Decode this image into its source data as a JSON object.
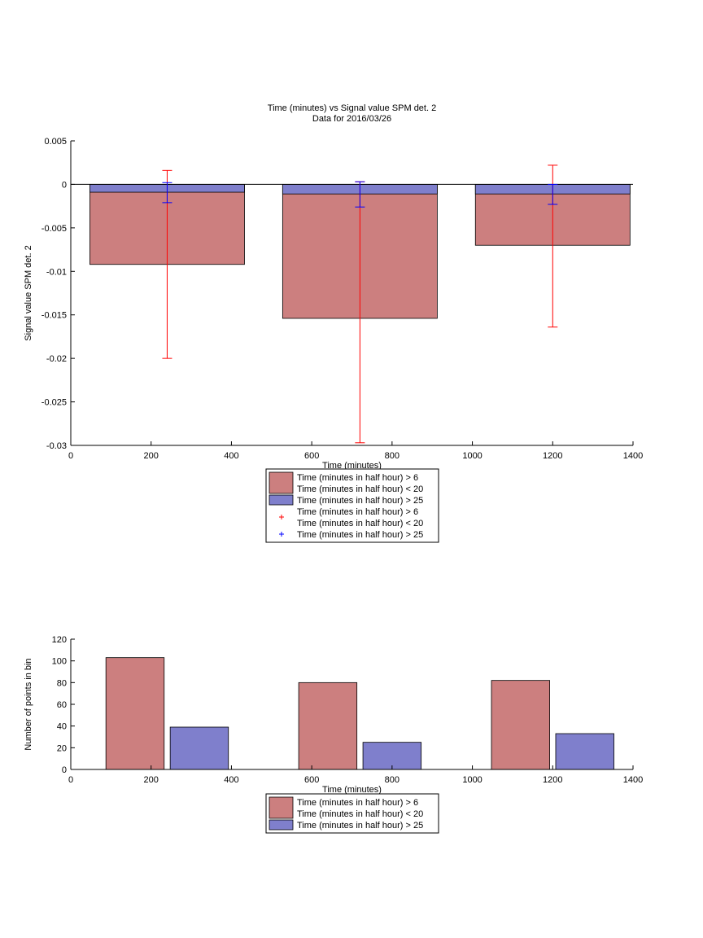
{
  "chart_data": [
    {
      "type": "bar",
      "title": "Time (minutes) vs Signal value SPM det. 2",
      "subtitle": "Data for 2016/03/26",
      "xlabel": "Time (minutes)",
      "ylabel": "Signal value SPM det. 2",
      "xlim": [
        0,
        1400
      ],
      "ylim": [
        -0.03,
        0.005
      ],
      "xticks": [
        0,
        200,
        400,
        600,
        800,
        1000,
        1200,
        1400
      ],
      "yticks": [
        0.005,
        0,
        -0.005,
        -0.01,
        -0.015,
        -0.02,
        -0.025,
        -0.03
      ],
      "ytick_labels": [
        "0.005",
        "0",
        "-0.005",
        "-0.01",
        "-0.015",
        "-0.02",
        "-0.025",
        "-0.03"
      ],
      "bar_width": 385,
      "x": [
        240,
        720,
        1200
      ],
      "series": [
        {
          "name": "Time (minutes in half hour) > 6\nTime (minutes in half hour) < 20",
          "color": "#cc7f7f",
          "values": [
            -0.0092,
            -0.0154,
            -0.007
          ]
        },
        {
          "name": "Time (minutes in half hour) > 25",
          "color": "#7f7fcc",
          "values": [
            -0.0009,
            -0.0011,
            -0.0011
          ]
        }
      ],
      "error_bars": [
        {
          "name": "Time (minutes in half hour) > 6\nTime (minutes in half hour) < 20",
          "color": "#ff0000",
          "x": [
            240,
            720,
            1200
          ],
          "low": [
            -0.02,
            -0.0297,
            -0.0164
          ],
          "high": [
            0.0016,
            0.0003,
            0.0022
          ]
        },
        {
          "name": "Time (minutes in half hour) > 25",
          "color": "#0000ff",
          "x": [
            240,
            720,
            1200
          ],
          "low": [
            -0.0021,
            -0.0026,
            -0.0023
          ],
          "high": [
            0.0002,
            0.0003,
            0.0
          ]
        }
      ],
      "legend": {
        "position": "below",
        "entries": [
          {
            "kind": "bar",
            "color": "#cc7f7f",
            "lines": [
              "Time (minutes in half hour) > 6",
              "Time (minutes in half hour) < 20"
            ]
          },
          {
            "kind": "bar",
            "color": "#7f7fcc",
            "lines": [
              "Time (minutes in half hour) > 25"
            ]
          },
          {
            "kind": "marker",
            "color": "#ff0000",
            "lines": [
              "Time (minutes in half hour) > 6",
              "Time (minutes in half hour) < 20"
            ]
          },
          {
            "kind": "marker",
            "color": "#0000ff",
            "lines": [
              "Time (minutes in half hour) > 25"
            ]
          }
        ]
      }
    },
    {
      "type": "bar",
      "xlabel": "Time (minutes)",
      "ylabel": "Number of points in bin",
      "xlim": [
        0,
        1400
      ],
      "ylim": [
        0,
        120
      ],
      "xticks": [
        0,
        200,
        400,
        600,
        800,
        1000,
        1200,
        1400
      ],
      "yticks": [
        0,
        20,
        40,
        60,
        80,
        100,
        120
      ],
      "ytick_labels": [
        "0",
        "20",
        "40",
        "60",
        "80",
        "100",
        "120"
      ],
      "bar_width": 145,
      "series": [
        {
          "name": "Time (minutes in half hour) > 6\nTime (minutes in half hour) < 20",
          "color": "#cc7f7f",
          "x": [
            160,
            640,
            1120
          ],
          "values": [
            103,
            80,
            82
          ]
        },
        {
          "name": "Time (minutes in half hour) > 25",
          "color": "#7f7fcc",
          "x": [
            320,
            800,
            1280
          ],
          "values": [
            39,
            25,
            33
          ]
        }
      ],
      "legend": {
        "position": "below",
        "entries": [
          {
            "kind": "bar",
            "color": "#cc7f7f",
            "lines": [
              "Time (minutes in half hour) > 6",
              "Time (minutes in half hour) < 20"
            ]
          },
          {
            "kind": "bar",
            "color": "#7f7fcc",
            "lines": [
              "Time (minutes in half hour) > 25"
            ]
          }
        ]
      }
    }
  ]
}
